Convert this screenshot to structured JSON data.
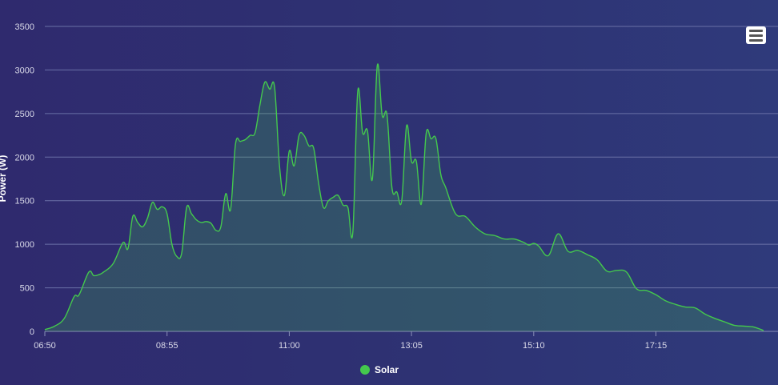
{
  "chart_data": {
    "type": "area",
    "title": "",
    "xlabel": "",
    "ylabel": "Power (W)",
    "ylim": [
      0,
      3500
    ],
    "yticks": [
      0,
      500,
      1000,
      1500,
      2000,
      2500,
      3000,
      3500
    ],
    "xlim": [
      "06:50",
      "19:10"
    ],
    "xticks": [
      "06:50",
      "08:55",
      "11:00",
      "13:05",
      "15:10",
      "17:15"
    ],
    "grid": true,
    "legend_position": "bottom",
    "series": [
      {
        "name": "Solar",
        "color": "#44c84d",
        "x": [
          "06:50",
          "07:00",
          "07:10",
          "07:20",
          "07:25",
          "07:35",
          "07:40",
          "07:45",
          "07:50",
          "08:00",
          "08:10",
          "08:15",
          "08:20",
          "08:25",
          "08:30",
          "08:35",
          "08:40",
          "08:45",
          "08:50",
          "08:55",
          "09:00",
          "09:05",
          "09:10",
          "09:15",
          "09:20",
          "09:25",
          "09:30",
          "09:35",
          "09:40",
          "09:45",
          "09:50",
          "09:55",
          "10:00",
          "10:05",
          "10:10",
          "10:15",
          "10:20",
          "10:25",
          "10:30",
          "10:35",
          "10:40",
          "10:45",
          "10:50",
          "10:55",
          "11:00",
          "11:05",
          "11:10",
          "11:15",
          "11:20",
          "11:25",
          "11:30",
          "11:35",
          "11:40",
          "11:45",
          "11:50",
          "11:55",
          "12:00",
          "12:05",
          "12:10",
          "12:15",
          "12:20",
          "12:25",
          "12:30",
          "12:35",
          "12:40",
          "12:45",
          "12:50",
          "12:55",
          "13:00",
          "13:05",
          "13:10",
          "13:15",
          "13:20",
          "13:25",
          "13:30",
          "13:35",
          "13:40",
          "13:50",
          "14:00",
          "14:10",
          "14:20",
          "14:30",
          "14:40",
          "14:50",
          "15:00",
          "15:05",
          "15:10",
          "15:15",
          "15:25",
          "15:35",
          "15:45",
          "15:55",
          "16:05",
          "16:15",
          "16:25",
          "16:35",
          "16:45",
          "16:55",
          "17:05",
          "17:15",
          "17:25",
          "17:35",
          "17:45",
          "17:55",
          "18:05",
          "18:15",
          "18:25",
          "18:35",
          "18:45",
          "18:55",
          "19:05"
        ],
        "values": [
          20,
          60,
          150,
          400,
          420,
          680,
          640,
          650,
          680,
          780,
          1020,
          950,
          1320,
          1250,
          1200,
          1300,
          1480,
          1400,
          1430,
          1350,
          1000,
          860,
          900,
          1420,
          1350,
          1280,
          1250,
          1260,
          1240,
          1160,
          1200,
          1580,
          1400,
          2150,
          2180,
          2200,
          2250,
          2280,
          2600,
          2860,
          2780,
          2800,
          1900,
          1560,
          2070,
          1900,
          2250,
          2250,
          2130,
          2100,
          1700,
          1420,
          1500,
          1540,
          1560,
          1450,
          1420,
          1140,
          2750,
          2280,
          2300,
          1750,
          3050,
          2480,
          2480,
          1650,
          1600,
          1500,
          2360,
          1950,
          1950,
          1460,
          2270,
          2210,
          2210,
          1800,
          1650,
          1350,
          1320,
          1200,
          1120,
          1100,
          1060,
          1060,
          1020,
          990,
          1010,
          980,
          870,
          1120,
          920,
          930,
          880,
          820,
          690,
          700,
          680,
          490,
          470,
          420,
          350,
          310,
          280,
          270,
          200,
          150,
          110,
          70,
          60,
          50,
          10
        ]
      }
    ]
  },
  "toolbar": {
    "menu_icon": "hamburger-icon"
  }
}
